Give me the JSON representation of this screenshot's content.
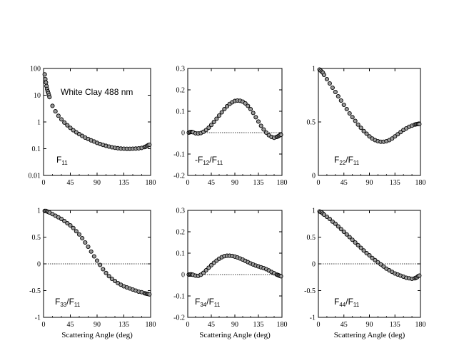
{
  "chart_data": [
    {
      "id": "f11",
      "type": "scatter",
      "label_main": "F",
      "label_sub": "11",
      "label_main2": "",
      "label_sub2": "",
      "annotation": "White Clay 488 nm",
      "yscale": "log",
      "xlim": [
        0,
        180
      ],
      "ylim": [
        0.01,
        100
      ],
      "xticks": [
        "0",
        "45",
        "90",
        "135",
        "180"
      ],
      "yticks": [
        "0.01",
        "0.1",
        "1",
        "10",
        "100"
      ],
      "ytick_values": [
        0.01,
        0.1,
        1,
        10,
        100
      ],
      "zero_line": false,
      "xlabel": "",
      "x": [
        2,
        3,
        4,
        5,
        6,
        7,
        8,
        9,
        10,
        15,
        20,
        25,
        30,
        35,
        40,
        45,
        50,
        55,
        60,
        65,
        70,
        75,
        80,
        85,
        90,
        95,
        100,
        105,
        110,
        115,
        120,
        125,
        130,
        135,
        140,
        145,
        150,
        155,
        160,
        165,
        170,
        172,
        174,
        176,
        178
      ],
      "y": [
        60,
        40,
        30,
        22,
        17,
        14,
        12,
        10,
        8.5,
        4.0,
        2.5,
        1.7,
        1.25,
        0.95,
        0.75,
        0.6,
        0.49,
        0.41,
        0.35,
        0.3,
        0.26,
        0.23,
        0.205,
        0.185,
        0.165,
        0.15,
        0.138,
        0.128,
        0.12,
        0.113,
        0.108,
        0.104,
        0.101,
        0.1,
        0.099,
        0.099,
        0.1,
        0.101,
        0.103,
        0.107,
        0.115,
        0.12,
        0.127,
        0.135,
        0.14
      ]
    },
    {
      "id": "f12",
      "type": "scatter",
      "label_main": "-F",
      "label_sub": "12",
      "label_main2": "/F",
      "label_sub2": "11",
      "yscale": "linear",
      "xlim": [
        0,
        180
      ],
      "ylim": [
        -0.2,
        0.3
      ],
      "xticks": [
        "0",
        "45",
        "90",
        "135",
        "180"
      ],
      "yticks": [
        "-0.2",
        "-0.1",
        "0",
        "0.1",
        "0.2",
        "0.3"
      ],
      "ytick_values": [
        -0.2,
        -0.1,
        0,
        0.1,
        0.2,
        0.3
      ],
      "zero_line": true,
      "xlabel": "",
      "x": [
        2,
        4,
        6,
        8,
        10,
        15,
        20,
        25,
        30,
        35,
        40,
        45,
        50,
        55,
        60,
        65,
        70,
        75,
        80,
        85,
        90,
        95,
        100,
        105,
        110,
        115,
        120,
        125,
        130,
        135,
        140,
        145,
        150,
        155,
        160,
        165,
        170,
        172,
        174,
        176,
        178
      ],
      "y": [
        0.0,
        0.002,
        0.003,
        0.003,
        0.002,
        -0.003,
        -0.004,
        -0.002,
        0.004,
        0.012,
        0.023,
        0.036,
        0.05,
        0.065,
        0.08,
        0.095,
        0.11,
        0.123,
        0.134,
        0.142,
        0.148,
        0.15,
        0.149,
        0.145,
        0.137,
        0.125,
        0.11,
        0.092,
        0.072,
        0.052,
        0.032,
        0.015,
        0.0,
        -0.012,
        -0.02,
        -0.024,
        -0.02,
        -0.018,
        -0.015,
        -0.012,
        -0.01
      ]
    },
    {
      "id": "f22",
      "type": "scatter",
      "label_main": "F",
      "label_sub": "22",
      "label_main2": "/F",
      "label_sub2": "11",
      "yscale": "linear",
      "xlim": [
        0,
        180
      ],
      "ylim": [
        0,
        1
      ],
      "xticks": [
        "0",
        "45",
        "90",
        "135",
        "180"
      ],
      "yticks": [
        "0",
        "0.5",
        "1"
      ],
      "ytick_values": [
        0,
        0.5,
        1
      ],
      "zero_line": false,
      "xlabel": "",
      "x": [
        2,
        4,
        6,
        8,
        10,
        15,
        20,
        25,
        30,
        35,
        40,
        45,
        50,
        55,
        60,
        65,
        70,
        75,
        80,
        85,
        90,
        95,
        100,
        105,
        110,
        115,
        120,
        125,
        130,
        135,
        140,
        145,
        150,
        155,
        160,
        165,
        170,
        172,
        174,
        176,
        178
      ],
      "y": [
        0.99,
        0.98,
        0.97,
        0.96,
        0.94,
        0.9,
        0.86,
        0.82,
        0.78,
        0.74,
        0.7,
        0.66,
        0.62,
        0.58,
        0.545,
        0.51,
        0.475,
        0.445,
        0.415,
        0.39,
        0.365,
        0.345,
        0.33,
        0.32,
        0.315,
        0.315,
        0.32,
        0.33,
        0.345,
        0.365,
        0.385,
        0.405,
        0.425,
        0.44,
        0.455,
        0.465,
        0.475,
        0.478,
        0.48,
        0.48,
        0.48
      ]
    },
    {
      "id": "f33",
      "type": "scatter",
      "label_main": "F",
      "label_sub": "33",
      "label_main2": "/F",
      "label_sub2": "11",
      "yscale": "linear",
      "xlim": [
        0,
        180
      ],
      "ylim": [
        -1,
        1
      ],
      "xticks": [
        "0",
        "45",
        "90",
        "135",
        "180"
      ],
      "yticks": [
        "-1",
        "-0.5",
        "0",
        "0.5",
        "1"
      ],
      "ytick_values": [
        -1,
        -0.5,
        0,
        0.5,
        1
      ],
      "zero_line": true,
      "xlabel": "Scattering Angle (deg)",
      "x": [
        2,
        4,
        6,
        8,
        10,
        15,
        20,
        25,
        30,
        35,
        40,
        45,
        50,
        55,
        60,
        65,
        70,
        75,
        80,
        85,
        90,
        95,
        100,
        105,
        110,
        115,
        120,
        125,
        130,
        135,
        140,
        145,
        150,
        155,
        160,
        165,
        170,
        172,
        174,
        176,
        178
      ],
      "y": [
        0.99,
        0.99,
        0.98,
        0.97,
        0.96,
        0.93,
        0.9,
        0.87,
        0.84,
        0.8,
        0.76,
        0.72,
        0.67,
        0.61,
        0.55,
        0.48,
        0.4,
        0.32,
        0.23,
        0.14,
        0.06,
        -0.02,
        -0.1,
        -0.17,
        -0.23,
        -0.28,
        -0.32,
        -0.36,
        -0.39,
        -0.42,
        -0.44,
        -0.46,
        -0.48,
        -0.5,
        -0.52,
        -0.53,
        -0.55,
        -0.555,
        -0.56,
        -0.565,
        -0.57
      ]
    },
    {
      "id": "f34",
      "type": "scatter",
      "label_main": "F",
      "label_sub": "34",
      "label_main2": "/F",
      "label_sub2": "11",
      "yscale": "linear",
      "xlim": [
        0,
        180
      ],
      "ylim": [
        -0.2,
        0.3
      ],
      "xticks": [
        "0",
        "45",
        "90",
        "135",
        "180"
      ],
      "yticks": [
        "-0.2",
        "-0.1",
        "0",
        "0.1",
        "0.2",
        "0.3"
      ],
      "ytick_values": [
        -0.2,
        -0.1,
        0,
        0.1,
        0.2,
        0.3
      ],
      "zero_line": true,
      "xlabel": "Scattering Angle (deg)",
      "x": [
        2,
        4,
        6,
        8,
        10,
        15,
        20,
        25,
        30,
        35,
        40,
        45,
        50,
        55,
        60,
        65,
        70,
        75,
        80,
        85,
        90,
        95,
        100,
        105,
        110,
        115,
        120,
        125,
        130,
        135,
        140,
        145,
        150,
        155,
        160,
        165,
        170,
        172,
        174,
        176,
        178
      ],
      "y": [
        0.0,
        0.0,
        0.001,
        0.0,
        -0.001,
        -0.005,
        -0.006,
        -0.001,
        0.008,
        0.02,
        0.032,
        0.044,
        0.055,
        0.065,
        0.074,
        0.081,
        0.086,
        0.088,
        0.088,
        0.087,
        0.084,
        0.08,
        0.075,
        0.07,
        0.064,
        0.058,
        0.052,
        0.047,
        0.042,
        0.038,
        0.034,
        0.03,
        0.025,
        0.019,
        0.012,
        0.006,
        0.0,
        -0.002,
        -0.004,
        -0.006,
        -0.008
      ]
    },
    {
      "id": "f44",
      "type": "scatter",
      "label_main": "F",
      "label_sub": "44",
      "label_main2": "/F",
      "label_sub2": "11",
      "yscale": "linear",
      "xlim": [
        0,
        180
      ],
      "ylim": [
        -1,
        1
      ],
      "xticks": [
        "0",
        "45",
        "90",
        "135",
        "180"
      ],
      "yticks": [
        "-1",
        "-0.5",
        "0",
        "0.5",
        "1"
      ],
      "ytick_values": [
        -1,
        -0.5,
        0,
        0.5,
        1
      ],
      "zero_line": true,
      "xlabel": "Scattering Angle (deg)",
      "x": [
        2,
        4,
        6,
        8,
        10,
        15,
        20,
        25,
        30,
        35,
        40,
        45,
        50,
        55,
        60,
        65,
        70,
        75,
        80,
        85,
        90,
        95,
        100,
        105,
        110,
        115,
        120,
        125,
        130,
        135,
        140,
        145,
        150,
        155,
        160,
        165,
        170,
        172,
        174,
        176,
        178
      ],
      "y": [
        0.98,
        0.97,
        0.96,
        0.94,
        0.92,
        0.88,
        0.84,
        0.79,
        0.75,
        0.7,
        0.65,
        0.6,
        0.55,
        0.5,
        0.45,
        0.4,
        0.35,
        0.3,
        0.25,
        0.2,
        0.16,
        0.11,
        0.07,
        0.03,
        -0.01,
        -0.05,
        -0.09,
        -0.12,
        -0.15,
        -0.18,
        -0.2,
        -0.22,
        -0.24,
        -0.26,
        -0.27,
        -0.28,
        -0.27,
        -0.26,
        -0.25,
        -0.23,
        -0.22
      ]
    }
  ]
}
